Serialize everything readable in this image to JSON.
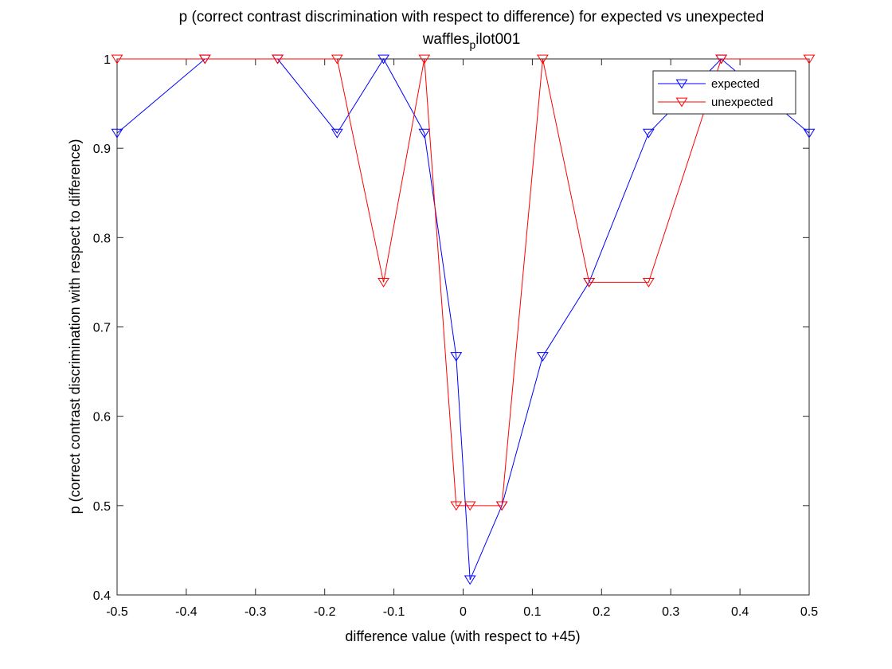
{
  "chart_data": {
    "type": "line",
    "title": "p (correct contrast discrimination with respect to difference) for expected vs unexpected",
    "subtitle_main": "waffles",
    "subtitle_sub": "p",
    "subtitle_tail": "ilot001",
    "xlabel": "difference value (with respect to +45)",
    "ylabel": "p (correct contrast discrimination with respect to difference)",
    "xlim": [
      -0.5,
      0.5
    ],
    "ylim": [
      0.4,
      1.0
    ],
    "xticks": [
      -0.5,
      -0.4,
      -0.3,
      -0.2,
      -0.1,
      0,
      0.1,
      0.2,
      0.3,
      0.4,
      0.5
    ],
    "xtick_labels": [
      "-0.5",
      "-0.4",
      "-0.3",
      "-0.2",
      "-0.1",
      "0",
      "0.1",
      "0.2",
      "0.3",
      "0.4",
      "0.5"
    ],
    "yticks": [
      0.4,
      0.5,
      0.6,
      0.7,
      0.8,
      0.9,
      1.0
    ],
    "ytick_labels": [
      "0.4",
      "0.5",
      "0.6",
      "0.7",
      "0.8",
      "0.9",
      "1"
    ],
    "grid": false,
    "legend_position": "top-right",
    "series": [
      {
        "name": "expected",
        "color": "#0000ff",
        "marker": "triangle-down",
        "x": [
          -0.5,
          -0.373,
          -0.268,
          -0.182,
          -0.115,
          -0.056,
          -0.01,
          0.01,
          0.056,
          0.115,
          0.182,
          0.268,
          0.373,
          0.5
        ],
        "y": [
          0.917,
          1.0,
          1.0,
          0.917,
          1.0,
          0.917,
          0.667,
          0.417,
          0.5,
          0.667,
          0.75,
          0.917,
          1.0,
          0.917
        ]
      },
      {
        "name": "unexpected",
        "color": "#ff0000",
        "marker": "triangle-down",
        "x": [
          -0.5,
          -0.373,
          -0.268,
          -0.182,
          -0.115,
          -0.056,
          -0.01,
          0.01,
          0.056,
          0.115,
          0.182,
          0.268,
          0.373,
          0.5
        ],
        "y": [
          1.0,
          1.0,
          1.0,
          1.0,
          0.75,
          1.0,
          0.5,
          0.5,
          0.5,
          1.0,
          0.75,
          0.75,
          1.0,
          1.0
        ]
      }
    ]
  }
}
